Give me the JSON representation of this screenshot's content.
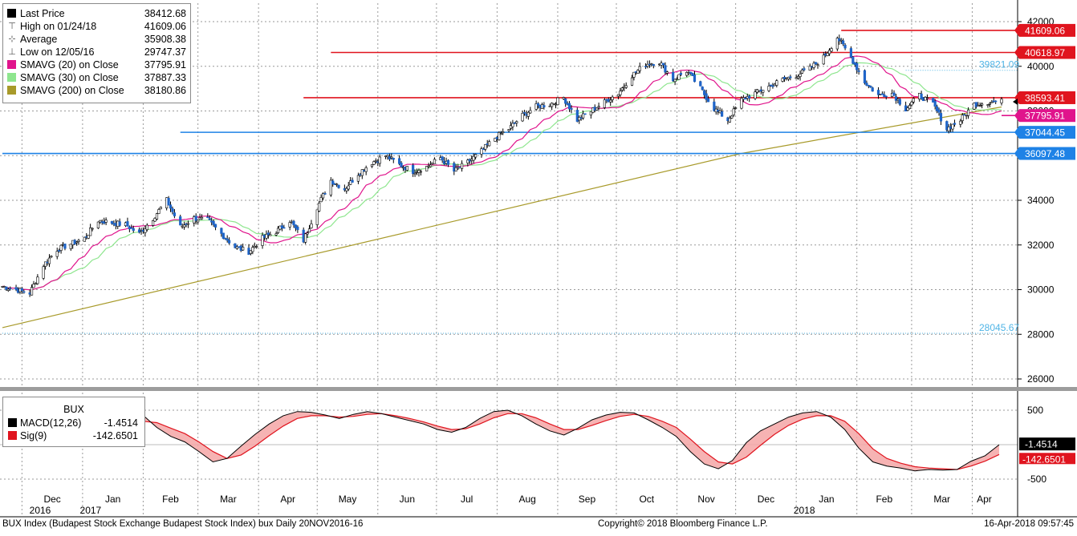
{
  "chart_data": [
    {
      "type": "candlestick",
      "title": "",
      "ylim": [
        25500,
        42600
      ],
      "y_ticks": [
        "26000",
        "28000",
        "30000",
        "32000",
        "34000",
        "36000",
        "38000",
        "40000",
        "42000"
      ],
      "grid": true,
      "legend_placement": "top-left",
      "x_labels": [
        "Dec",
        "Jan",
        "Feb",
        "Mar",
        "Apr",
        "May",
        "Jun",
        "Jul",
        "Aug",
        "Sep",
        "Oct",
        "Nov",
        "Dec",
        "Jan",
        "Feb",
        "Mar",
        "Apr"
      ],
      "year_labels": [
        "2016",
        "2017",
        "2018"
      ],
      "legend": [
        {
          "label": "Last Price",
          "value": "38412.68",
          "color": "#000000"
        },
        {
          "label": "High on 01/24/18",
          "value": "41609.06"
        },
        {
          "label": "Average",
          "value": "35908.38"
        },
        {
          "label": "Low on 12/05/16",
          "value": "29747.37"
        },
        {
          "label": "SMAVG (20) on Close",
          "value": "37795.91",
          "color": "#e0148c"
        },
        {
          "label": "SMAVG (30) on Close",
          "value": "37887.33",
          "color": "#8ee68e"
        },
        {
          "label": "SMAVG (200) on Close",
          "value": "38180.86",
          "color": "#a89a2a"
        }
      ],
      "close_series": [
        [
          "2016-11-21",
          30150
        ],
        [
          "2016-12-05",
          29850
        ],
        [
          "2016-12-12",
          31100
        ],
        [
          "2016-12-19",
          31800
        ],
        [
          "2017-01-02",
          32300
        ],
        [
          "2017-01-09",
          33100
        ],
        [
          "2017-01-16",
          33000
        ],
        [
          "2017-01-23",
          32900
        ],
        [
          "2017-01-30",
          32500
        ],
        [
          "2017-02-06",
          33200
        ],
        [
          "2017-02-13",
          34000
        ],
        [
          "2017-02-20",
          32800
        ],
        [
          "2017-02-27",
          33200
        ],
        [
          "2017-03-06",
          33100
        ],
        [
          "2017-03-13",
          32500
        ],
        [
          "2017-03-20",
          31900
        ],
        [
          "2017-03-27",
          31700
        ],
        [
          "2017-04-03",
          32300
        ],
        [
          "2017-04-10",
          32600
        ],
        [
          "2017-04-17",
          33100
        ],
        [
          "2017-04-24",
          32200
        ],
        [
          "2017-05-01",
          33700
        ],
        [
          "2017-05-08",
          34900
        ],
        [
          "2017-05-15",
          34500
        ],
        [
          "2017-05-22",
          35200
        ],
        [
          "2017-05-29",
          35700
        ],
        [
          "2017-06-05",
          36000
        ],
        [
          "2017-06-12",
          35600
        ],
        [
          "2017-06-19",
          35300
        ],
        [
          "2017-06-26",
          35500
        ],
        [
          "2017-07-03",
          35900
        ],
        [
          "2017-07-10",
          35300
        ],
        [
          "2017-07-17",
          35700
        ],
        [
          "2017-07-24",
          36200
        ],
        [
          "2017-07-31",
          36800
        ],
        [
          "2017-08-07",
          37200
        ],
        [
          "2017-08-14",
          37800
        ],
        [
          "2017-08-21",
          38200
        ],
        [
          "2017-08-28",
          38300
        ],
        [
          "2017-09-04",
          38600
        ],
        [
          "2017-09-11",
          37600
        ],
        [
          "2017-09-18",
          38000
        ],
        [
          "2017-09-25",
          38400
        ],
        [
          "2017-10-02",
          38800
        ],
        [
          "2017-10-09",
          39600
        ],
        [
          "2017-10-16",
          40100
        ],
        [
          "2017-10-23",
          40200
        ],
        [
          "2017-10-30",
          39400
        ],
        [
          "2017-11-06",
          39800
        ],
        [
          "2017-11-13",
          39000
        ],
        [
          "2017-11-20",
          38100
        ],
        [
          "2017-11-27",
          37600
        ],
        [
          "2017-12-04",
          38500
        ],
        [
          "2017-12-11",
          38800
        ],
        [
          "2017-12-18",
          39100
        ],
        [
          "2017-12-25",
          39400
        ],
        [
          "2018-01-01",
          39600
        ],
        [
          "2018-01-08",
          39900
        ],
        [
          "2018-01-15",
          40400
        ],
        [
          "2018-01-22",
          41300
        ],
        [
          "2018-01-29",
          40400
        ],
        [
          "2018-02-05",
          39300
        ],
        [
          "2018-02-12",
          38700
        ],
        [
          "2018-02-19",
          38800
        ],
        [
          "2018-02-26",
          38100
        ],
        [
          "2018-03-05",
          38700
        ],
        [
          "2018-03-12",
          38300
        ],
        [
          "2018-03-19",
          37200
        ],
        [
          "2018-03-26",
          37600
        ],
        [
          "2018-04-02",
          38300
        ],
        [
          "2018-04-09",
          38400
        ],
        [
          "2018-04-16",
          38412.68
        ]
      ],
      "sma200_endpoints": [
        [
          "2016-11-21",
          28300
        ],
        [
          "2017-12-04",
          36100
        ],
        [
          "2018-04-16",
          38180.86
        ]
      ],
      "horizontal_lines": [
        {
          "value": 41609.06,
          "label": "41609.06",
          "color": "#e0141e",
          "from": "2018-01-24",
          "marker_fill": "#e0141e"
        },
        {
          "value": 40618.97,
          "label": "40618.97",
          "color": "#e0141e",
          "from": "2017-05-08",
          "marker_fill": "#e0141e"
        },
        {
          "value": 39821.09,
          "label": "39821.09",
          "color": "#4fb4e6",
          "from": "2018-02-26",
          "dotted": true
        },
        {
          "value": 38593.41,
          "label": "38593.41",
          "color": "#e0141e",
          "from": "2017-04-24",
          "marker_fill": "#e0141e"
        },
        {
          "value": 37795.91,
          "label": "37795.91",
          "color": "#e0148c",
          "from": "2018-04-16",
          "marker_fill": "#e0148c"
        },
        {
          "value": 37044.45,
          "label": "37044.45",
          "color": "#1e82e6",
          "from": "2017-02-20",
          "marker_fill": "#1e82e6"
        },
        {
          "value": 36097.48,
          "label": "36097.48",
          "color": "#1e82e6",
          "from": "2016-11-21",
          "marker_fill": "#1e82e6"
        },
        {
          "value": 28045.67,
          "label": "28045.67",
          "color": "#4fb4e6",
          "from": "2016-11-21",
          "dotted": true
        }
      ]
    },
    {
      "type": "line",
      "title": "BUX",
      "ylim": [
        -620,
        600
      ],
      "y_ticks": [
        "500",
        "0",
        "-500"
      ],
      "legend": [
        {
          "label": "MACD(12,26)",
          "value": "-1.4514",
          "color": "#000000"
        },
        {
          "label": "Sig(9)",
          "value": "-142.6501",
          "color": "#e0141e"
        }
      ],
      "series": [
        {
          "name": "MACD(12,26)",
          "values": [
            80,
            160,
            310,
            430,
            470,
            420,
            350,
            280,
            230,
            300,
            430,
            250,
            120,
            40,
            -100,
            -250,
            -200,
            -20,
            150,
            300,
            420,
            480,
            470,
            430,
            380,
            440,
            480,
            450,
            400,
            350,
            300,
            220,
            180,
            250,
            380,
            480,
            500,
            420,
            300,
            200,
            140,
            240,
            360,
            430,
            470,
            460,
            360,
            250,
            120,
            -100,
            -280,
            -350,
            -230,
            30,
            200,
            300,
            400,
            460,
            480,
            400,
            220,
            -50,
            -250,
            -310,
            -340,
            -380,
            -360,
            -370,
            -360,
            -240,
            -160,
            -1.4514
          ]
        },
        {
          "name": "Sig(9)",
          "values": [
            120,
            150,
            250,
            350,
            410,
            420,
            390,
            340,
            290,
            280,
            340,
            320,
            240,
            160,
            40,
            -100,
            -200,
            -150,
            -20,
            130,
            270,
            380,
            420,
            420,
            400,
            410,
            440,
            450,
            420,
            380,
            330,
            270,
            220,
            230,
            300,
            390,
            450,
            450,
            390,
            300,
            220,
            220,
            280,
            350,
            410,
            440,
            410,
            340,
            250,
            80,
            -100,
            -250,
            -280,
            -180,
            -10,
            150,
            280,
            370,
            420,
            420,
            340,
            160,
            -60,
            -200,
            -270,
            -320,
            -340,
            -350,
            -360,
            -310,
            -240,
            -142.6501
          ]
        }
      ]
    }
  ],
  "footer": {
    "left": "BUX Index (Budapest Stock Exchange Budapest Stock Index) bux  Daily 20NOV2016-16",
    "center": "Copyright© 2018 Bloomberg Finance L.P.",
    "right": "16-Apr-2018 09:57:45"
  }
}
